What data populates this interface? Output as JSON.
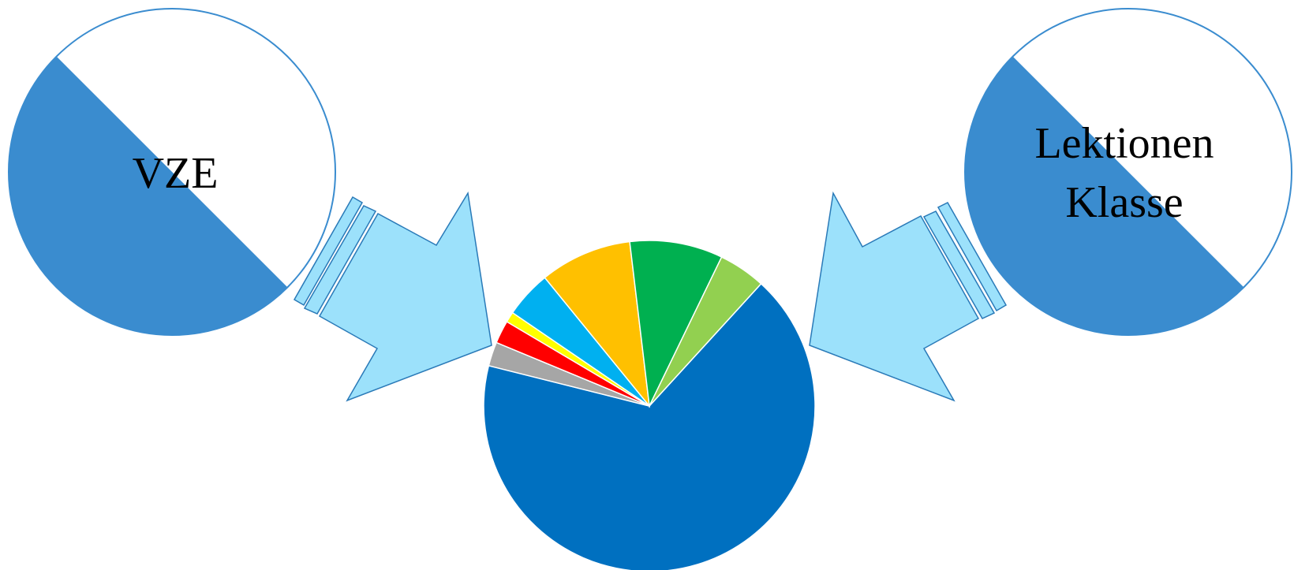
{
  "left_circle": {
    "label": "VZE"
  },
  "right_circle": {
    "label_line1": "Lektionen",
    "label_line2": "Klasse"
  },
  "colors": {
    "circle_fill": "#3A8CCF",
    "circle_stroke": "#3A8CCF",
    "arrow_fill": "#9CE1FB",
    "arrow_stroke": "#2A7AB8",
    "pie_stroke": "#ffffff"
  },
  "chart_data": {
    "type": "pie",
    "slices": [
      {
        "value": 65.8,
        "color": "#0070C0"
      },
      {
        "value": 2.3,
        "color": "#A6A6A6"
      },
      {
        "value": 2.2,
        "color": "#FF0000"
      },
      {
        "value": 1.0,
        "color": "#FFFF00"
      },
      {
        "value": 4.5,
        "color": "#00B0F0"
      },
      {
        "value": 8.8,
        "color": "#FFC000"
      },
      {
        "value": 8.9,
        "color": "#00B050"
      },
      {
        "value": 4.5,
        "color": "#92D050"
      }
    ]
  }
}
